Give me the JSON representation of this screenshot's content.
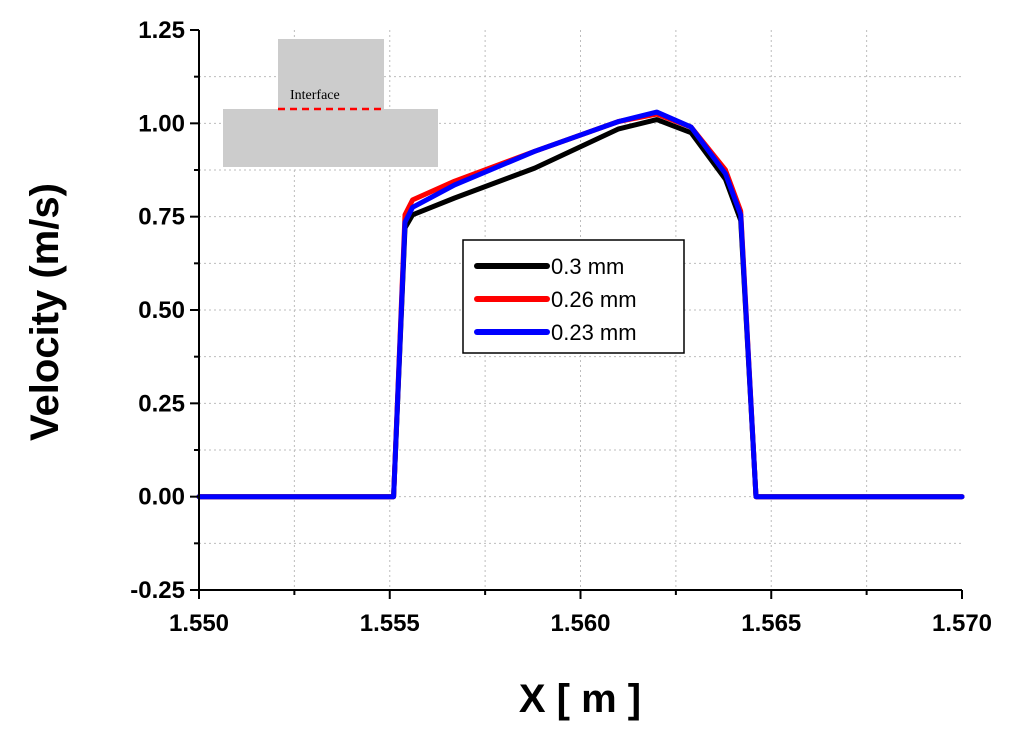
{
  "chart_data": {
    "type": "line",
    "title": "",
    "xlabel": "X [ m ]",
    "ylabel": "Velocity (m/s)",
    "xlim": [
      1.55,
      1.57
    ],
    "ylim": [
      -0.25,
      1.25
    ],
    "xticks": [
      1.55,
      1.555,
      1.56,
      1.565,
      1.57
    ],
    "xtick_labels": [
      "1.550",
      "1.555",
      "1.560",
      "1.565",
      "1.570"
    ],
    "yticks": [
      -0.25,
      0,
      0.25,
      0.5,
      0.75,
      1.0,
      1.25
    ],
    "ytick_labels": [
      "-0.25",
      "0.00",
      "0.25",
      "0.50",
      "0.75",
      "1.00",
      "1.25"
    ],
    "grid": true,
    "legend_position": "center",
    "series": [
      {
        "name": "0.3 mm",
        "color": "#000000",
        "x": [
          1.55,
          1.5551,
          1.5554,
          1.5556,
          1.5567,
          1.5588,
          1.561,
          1.562,
          1.5629,
          1.5638,
          1.5642,
          1.5646,
          1.57
        ],
        "y": [
          0,
          0,
          0.72,
          0.755,
          0.8,
          0.88,
          0.985,
          1.01,
          0.975,
          0.85,
          0.74,
          0,
          0
        ]
      },
      {
        "name": "0.26 mm",
        "color": "#ff0000",
        "x": [
          1.55,
          1.5551,
          1.5554,
          1.5556,
          1.5567,
          1.5588,
          1.561,
          1.562,
          1.5629,
          1.5638,
          1.5642,
          1.5646,
          1.57
        ],
        "y": [
          0,
          0,
          0.755,
          0.795,
          0.845,
          0.925,
          1.005,
          1.025,
          0.99,
          0.875,
          0.765,
          0,
          0
        ]
      },
      {
        "name": "0.23 mm",
        "color": "#0000ff",
        "x": [
          1.55,
          1.5551,
          1.5554,
          1.5556,
          1.5567,
          1.5588,
          1.561,
          1.562,
          1.5629,
          1.5638,
          1.5642,
          1.5646,
          1.57
        ],
        "y": [
          0,
          0,
          0.735,
          0.775,
          0.835,
          0.925,
          1.005,
          1.03,
          0.99,
          0.865,
          0.755,
          0,
          0
        ]
      }
    ],
    "inset": {
      "label": "Interface",
      "block_color": "#cccccc",
      "line_color": "#ff0000"
    }
  }
}
